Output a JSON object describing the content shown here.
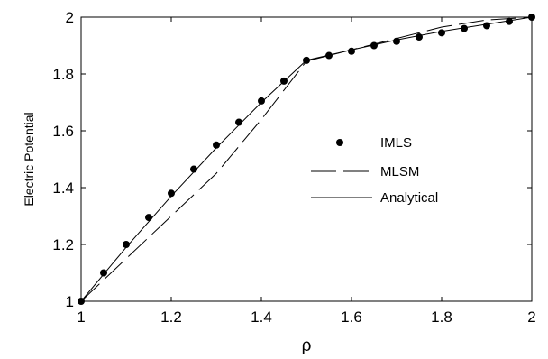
{
  "chart_data": {
    "type": "line",
    "xlabel": "ρ",
    "ylabel": "Electric Potential",
    "xlim": [
      1,
      2
    ],
    "ylim": [
      1,
      2
    ],
    "xticks": [
      1,
      1.2,
      1.4,
      1.6,
      1.8,
      2
    ],
    "yticks": [
      1,
      1.2,
      1.4,
      1.6,
      1.8,
      2
    ],
    "xtick_labels": [
      "1",
      "1.2",
      "1.4",
      "1.6",
      "1.8",
      "2"
    ],
    "ytick_labels": [
      "1",
      "1.2",
      "1.4",
      "1.6",
      "1.8",
      "2"
    ],
    "grid": false,
    "legend_position": "center-right",
    "series": [
      {
        "name": "IMLS",
        "style": "markers",
        "x": [
          1.0,
          1.05,
          1.1,
          1.15,
          1.2,
          1.25,
          1.3,
          1.35,
          1.4,
          1.45,
          1.5,
          1.55,
          1.6,
          1.65,
          1.7,
          1.75,
          1.8,
          1.85,
          1.9,
          1.95,
          2.0
        ],
        "y": [
          1.0,
          1.1,
          1.2,
          1.295,
          1.38,
          1.465,
          1.55,
          1.63,
          1.705,
          1.775,
          1.848,
          1.865,
          1.88,
          1.9,
          1.915,
          1.93,
          1.945,
          1.96,
          1.97,
          1.985,
          2.0
        ]
      },
      {
        "name": "MLSM",
        "style": "dashed",
        "x": [
          1.0,
          1.1,
          1.2,
          1.3,
          1.4,
          1.5,
          1.6,
          1.7,
          1.8,
          1.9,
          2.0
        ],
        "y": [
          1.0,
          1.15,
          1.3,
          1.45,
          1.64,
          1.845,
          1.885,
          1.925,
          1.965,
          1.99,
          2.0
        ]
      },
      {
        "name": "Analytical",
        "style": "solid",
        "x": [
          1.0,
          1.1,
          1.2,
          1.3,
          1.4,
          1.5,
          1.6,
          1.7,
          1.8,
          1.9,
          2.0
        ],
        "y": [
          1.0,
          1.19,
          1.37,
          1.54,
          1.7,
          1.848,
          1.885,
          1.92,
          1.95,
          1.975,
          2.0
        ]
      }
    ]
  }
}
